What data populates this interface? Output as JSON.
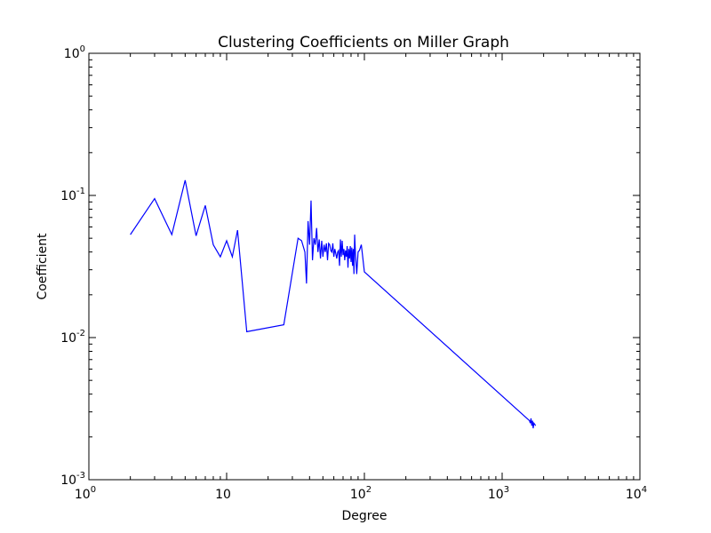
{
  "chart_data": {
    "type": "line",
    "title": "Clustering Coefficients on Miller Graph",
    "xlabel": "Degree",
    "ylabel": "Coefficient",
    "xscale": "log",
    "yscale": "log",
    "xlim": [
      1,
      10000
    ],
    "ylim": [
      0.001,
      1
    ],
    "grid": false,
    "legend": "none",
    "x_ticks": [
      {
        "base": "10",
        "exp": "0",
        "value": 1
      },
      {
        "base": "10",
        "exp": "",
        "value": 10
      },
      {
        "base": "10",
        "exp": "2",
        "value": 100
      },
      {
        "base": "10",
        "exp": "3",
        "value": 1000
      },
      {
        "base": "10",
        "exp": "4",
        "value": 10000
      }
    ],
    "y_ticks": [
      {
        "base": "10",
        "exp": "-3",
        "value": 0.001
      },
      {
        "base": "10",
        "exp": "-2",
        "value": 0.01
      },
      {
        "base": "10",
        "exp": "-1",
        "value": 0.1
      },
      {
        "base": "10",
        "exp": "0",
        "value": 1
      }
    ],
    "series": [
      {
        "color": "#0000ff",
        "x": [
          2,
          3,
          4,
          5,
          6,
          7,
          8,
          9,
          10,
          11,
          12,
          14,
          26,
          33,
          35,
          37,
          38,
          39,
          40,
          41,
          42,
          43,
          44,
          45,
          46,
          47,
          48,
          49,
          50,
          51,
          52,
          53,
          54,
          55,
          56,
          57,
          58,
          59,
          60,
          61,
          62,
          63,
          64,
          65,
          66,
          67,
          68,
          69,
          70,
          71,
          72,
          73,
          74,
          75,
          76,
          77,
          78,
          79,
          80,
          81,
          82,
          83,
          84,
          85,
          86,
          88,
          90,
          92,
          95,
          100,
          1580,
          1600,
          1620,
          1640,
          1660,
          1680,
          1700,
          1750
        ],
        "y": [
          0.053,
          0.095,
          0.053,
          0.128,
          0.052,
          0.085,
          0.045,
          0.037,
          0.048,
          0.037,
          0.057,
          0.011,
          0.0123,
          0.05,
          0.048,
          0.04,
          0.024,
          0.066,
          0.045,
          0.092,
          0.035,
          0.05,
          0.045,
          0.059,
          0.04,
          0.049,
          0.036,
          0.048,
          0.037,
          0.045,
          0.04,
          0.046,
          0.035,
          0.046,
          0.045,
          0.041,
          0.04,
          0.046,
          0.037,
          0.042,
          0.039,
          0.036,
          0.04,
          0.041,
          0.032,
          0.049,
          0.037,
          0.048,
          0.038,
          0.042,
          0.035,
          0.041,
          0.037,
          0.044,
          0.031,
          0.042,
          0.036,
          0.044,
          0.034,
          0.043,
          0.032,
          0.042,
          0.028,
          0.053,
          0.04,
          0.028,
          0.04,
          0.041,
          0.045,
          0.029,
          0.0026,
          0.0025,
          0.0027,
          0.0024,
          0.0026,
          0.0023,
          0.0025,
          0.0024
        ]
      }
    ]
  }
}
